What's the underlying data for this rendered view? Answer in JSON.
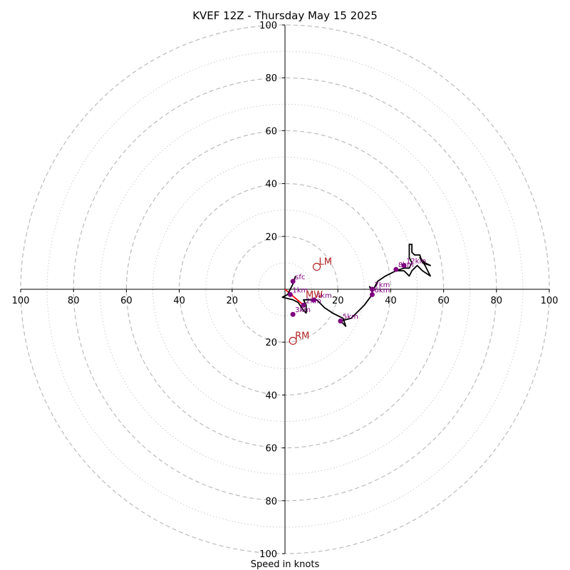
{
  "chart_data": {
    "type": "hodograph",
    "title": "KVEF 12Z - Thursday May 15 2025",
    "xlabel": "Speed in knots",
    "range": 100,
    "ring_step_major": 20,
    "ring_step_minor": 10,
    "x_ticks": [
      "100",
      "80",
      "60",
      "40",
      "20",
      "20",
      "40",
      "60",
      "80",
      "100"
    ],
    "x_tick_values": [
      -100,
      -80,
      -60,
      -40,
      -20,
      20,
      40,
      60,
      80,
      100
    ],
    "y_ticks": [
      "100",
      "80",
      "60",
      "40",
      "20",
      "20",
      "40",
      "60",
      "80",
      "100"
    ],
    "y_tick_values": [
      100,
      80,
      60,
      40,
      20,
      -20,
      -40,
      -60,
      -80,
      -100
    ],
    "trace": [
      [
        4,
        5
      ],
      [
        3,
        2
      ],
      [
        2,
        0
      ],
      [
        1,
        -2
      ],
      [
        -1,
        -3
      ],
      [
        3,
        -4
      ],
      [
        5,
        -5
      ],
      [
        7,
        -8
      ],
      [
        8,
        -9
      ],
      [
        8,
        -6
      ],
      [
        7,
        -4
      ],
      [
        10,
        -4
      ],
      [
        12,
        -4
      ],
      [
        15,
        -7
      ],
      [
        18,
        -9
      ],
      [
        22,
        -11
      ],
      [
        23,
        -14
      ],
      [
        21,
        -12
      ],
      [
        25,
        -11
      ],
      [
        30,
        -6
      ],
      [
        33,
        -2
      ],
      [
        33,
        0
      ],
      [
        32,
        1
      ],
      [
        33,
        -1
      ],
      [
        35,
        3
      ],
      [
        38,
        5
      ],
      [
        42,
        7
      ],
      [
        45,
        8
      ],
      [
        47,
        8
      ],
      [
        48,
        10
      ],
      [
        47,
        12
      ],
      [
        47,
        16
      ],
      [
        47,
        17
      ],
      [
        48,
        17
      ],
      [
        48,
        14
      ],
      [
        49,
        13
      ],
      [
        51,
        13
      ],
      [
        52,
        10
      ],
      [
        55,
        9
      ],
      [
        53,
        10
      ],
      [
        51,
        12
      ],
      [
        53,
        9
      ],
      [
        55,
        5
      ],
      [
        52,
        7
      ],
      [
        50,
        9
      ],
      [
        48,
        7
      ],
      [
        47,
        5
      ],
      [
        45,
        7
      ],
      [
        42,
        7
      ]
    ],
    "height_markers": [
      {
        "label": "sfc",
        "u": 3,
        "v": 3
      },
      {
        "label": "1km",
        "u": 2,
        "v": -2
      },
      {
        "label": "2km",
        "u": 7,
        "v": -6
      },
      {
        "label": "3km",
        "u": 3,
        "v": -9.5
      },
      {
        "label": "4km",
        "u": 11,
        "v": -4
      },
      {
        "label": "5km",
        "u": 21,
        "v": -12
      },
      {
        "label": "6km",
        "u": 33,
        "v": -2
      },
      {
        "label": "7km",
        "u": 33,
        "v": 0
      },
      {
        "label": "8km",
        "u": 42,
        "v": 7.5
      },
      {
        "label": "12km",
        "u": 45,
        "v": 9
      }
    ],
    "storm_motions": [
      {
        "label": "LM",
        "u": 12,
        "v": 8.5
      },
      {
        "label": "RM",
        "u": 3,
        "v": -19.5
      },
      {
        "label": "MW",
        "u": 7,
        "v": -4
      }
    ],
    "shear_vector": {
      "u0": 0,
      "v0": 0,
      "u1": 7,
      "v1": -6
    },
    "colors": {
      "trace": "#000000",
      "markers": "#800080",
      "storm_motion": "#b22222",
      "shear": "#ff0000",
      "major_ring": "#bbbbbb",
      "minor_ring": "#cccccc"
    }
  }
}
